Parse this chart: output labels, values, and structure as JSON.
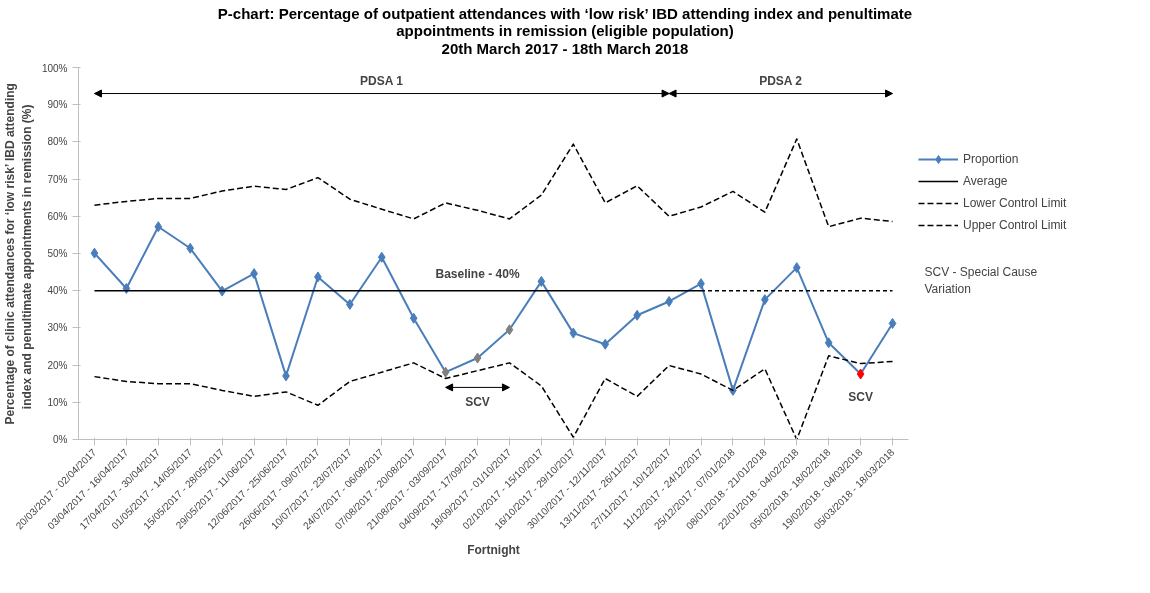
{
  "chart_data": {
    "type": "line",
    "title": "P-chart: Percentage of outpatient attendances with ‘low risk’ IBD attending index and penultimate\nappointments in remission (eligible population)\n20th March 2017 - 18th March 2018",
    "xlabel": "Fortnight",
    "ylabel": "Percentage of clinic attendances for ‘low risk’ IBD attending\nindex and penultimate appointments in remission   (%)",
    "categories": [
      "20/03/2017 - 02/04/2017",
      "03/04/2017 - 16/04/2017",
      "17/04/2017 - 30/04/2017",
      "01/05/2017 - 14/05/2017",
      "15/05/2017 - 28/05/2017",
      "29/05/2017 - 11/06/2017",
      "12/06/2017 - 25/06/2017",
      "26/06/2017 - 09/07/2017",
      "10/07/2017 - 23/07/2017",
      "24/07/2017 - 06/08/2017",
      "07/08/2017 - 20/08/2017",
      "21/08/2017 - 03/09/2017",
      "04/09/2017 - 17/09/2017",
      "18/09/2017 - 01/10/2017",
      "02/10/2017 - 15/10/2017",
      "16/10/2017 - 29/10/2017",
      "30/10/2017 - 12/11/2017",
      "13/11/2017 - 26/11/2017",
      "27/11/2017 - 10/12/2017",
      "11/12/2017 - 24/12/2017",
      "25/12/2017 - 07/01/2018",
      "08/01/2018 - 21/01/2018",
      "22/01/2018 - 04/02/2018",
      "05/02/2018 - 18/02/2018",
      "19/02/2018 - 04/03/2018",
      "05/03/2018 - 18/03/2018"
    ],
    "series": [
      {
        "name": "Proportion",
        "color": "#4a7ebb",
        "marker": "diamond",
        "line_style": "solid",
        "values": [
          50.1,
          40.6,
          57.2,
          51.4,
          39.9,
          44.6,
          17.1,
          43.7,
          36.3,
          49.0,
          32.6,
          18.1,
          21.9,
          29.5,
          42.5,
          28.6,
          25.6,
          33.4,
          37.1,
          41.9,
          13.2,
          37.6,
          46.2,
          26.0,
          17.6,
          31.2
        ],
        "colors": [
          "#4a7ebb",
          "#4a7ebb",
          "#4a7ebb",
          "#4a7ebb",
          "#4a7ebb",
          "#4a7ebb",
          "#4a7ebb",
          "#4a7ebb",
          "#4a7ebb",
          "#4a7ebb",
          "#4a7ebb",
          "#808080",
          "#808080",
          "#808080",
          "#4a7ebb",
          "#4a7ebb",
          "#4a7ebb",
          "#4a7ebb",
          "#4a7ebb",
          "#4a7ebb",
          "#4a7ebb",
          "#4a7ebb",
          "#4a7ebb",
          "#4a7ebb",
          "#ff0000",
          "#4a7ebb"
        ]
      },
      {
        "name": "Average",
        "color": "#000000",
        "marker": "none",
        "line_style": "solid",
        "values": [
          40,
          40,
          40,
          40,
          40,
          40,
          40,
          40,
          40,
          40,
          40,
          40,
          40,
          40,
          40,
          40,
          40,
          40,
          40,
          40,
          null,
          null,
          null,
          null,
          null,
          null
        ]
      },
      {
        "color": "#000000",
        "marker": "none",
        "line_style": "dotted",
        "values": [
          null,
          null,
          null,
          null,
          null,
          null,
          null,
          null,
          null,
          null,
          null,
          null,
          null,
          null,
          null,
          null,
          null,
          null,
          null,
          40,
          40,
          40,
          40,
          40,
          40,
          40
        ]
      },
      {
        "name": "Lower Control Limit",
        "color": "#000000",
        "marker": "none",
        "line_style": "dashed",
        "values": [
          16.9,
          15.6,
          15.0,
          15.0,
          13.2,
          11.6,
          12.8,
          9.2,
          15.6,
          18.1,
          20.6,
          16.4,
          18.5,
          20.6,
          14.4,
          0.6,
          16.4,
          11.6,
          19.9,
          17.6,
          13.2,
          19.0,
          0,
          22.5,
          20.4,
          21.0
        ]
      },
      {
        "name": "Upper Control Limit",
        "color": "#000000",
        "marker": "none",
        "line_style": "dashed",
        "values": [
          63.0,
          64.0,
          64.8,
          64.8,
          66.8,
          68.1,
          67.2,
          70.4,
          64.6,
          61.9,
          59.3,
          63.6,
          61.6,
          59.3,
          65.7,
          79.4,
          63.6,
          68.2,
          60.0,
          62.5,
          66.7,
          61.1,
          80.8,
          57.2,
          59.5,
          58.6
        ]
      }
    ],
    "ylim": [
      0,
      100
    ],
    "yticks": [
      {
        "value": 0,
        "label": "0%"
      },
      {
        "value": 10,
        "label": "10%"
      },
      {
        "value": 20,
        "label": "20%"
      },
      {
        "value": 30,
        "label": "30%"
      },
      {
        "value": 40,
        "label": "40%"
      },
      {
        "value": 50,
        "label": "50%"
      },
      {
        "value": 60,
        "label": "60%"
      },
      {
        "value": 70,
        "label": "70%"
      },
      {
        "value": 80,
        "label": "80%"
      },
      {
        "value": 90,
        "label": "90%"
      },
      {
        "value": 100,
        "label": "100%"
      }
    ],
    "grid": false,
    "legend": "right",
    "annotations": [
      "PDSA 1",
      "PDSA 2",
      "Baseline - 40%",
      "SCV",
      "SCV",
      "SCV - Special Cause Variation"
    ]
  }
}
